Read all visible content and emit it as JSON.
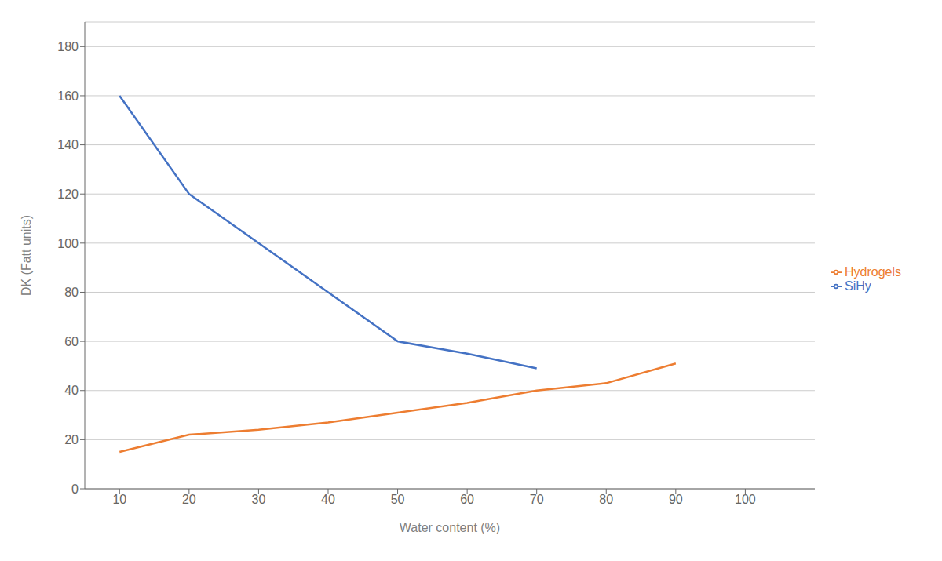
{
  "chart_data": {
    "type": "line",
    "x_label": "Water content (%)",
    "y_label": "DK (Fatt units)",
    "series": [
      {
        "name": "SiHy",
        "color": "#4472C4",
        "x": [
          10,
          20,
          30,
          40,
          50,
          60,
          70
        ],
        "values": [
          160,
          120,
          100,
          80,
          60,
          55,
          49
        ]
      },
      {
        "name": "Hydrogels",
        "color": "#ED7D31",
        "x": [
          10,
          20,
          30,
          40,
          50,
          60,
          70,
          80,
          90
        ],
        "values": [
          15,
          22,
          24,
          27,
          31,
          35,
          40,
          43,
          51
        ]
      }
    ],
    "xlim": [
      5,
      110
    ],
    "ylim": [
      0,
      190
    ],
    "xticks": [
      10,
      20,
      30,
      40,
      50,
      60,
      70,
      80,
      90,
      100
    ],
    "yticks": [
      0,
      20,
      40,
      60,
      80,
      100,
      120,
      140,
      160,
      180
    ],
    "grid": true,
    "legend": "right"
  }
}
